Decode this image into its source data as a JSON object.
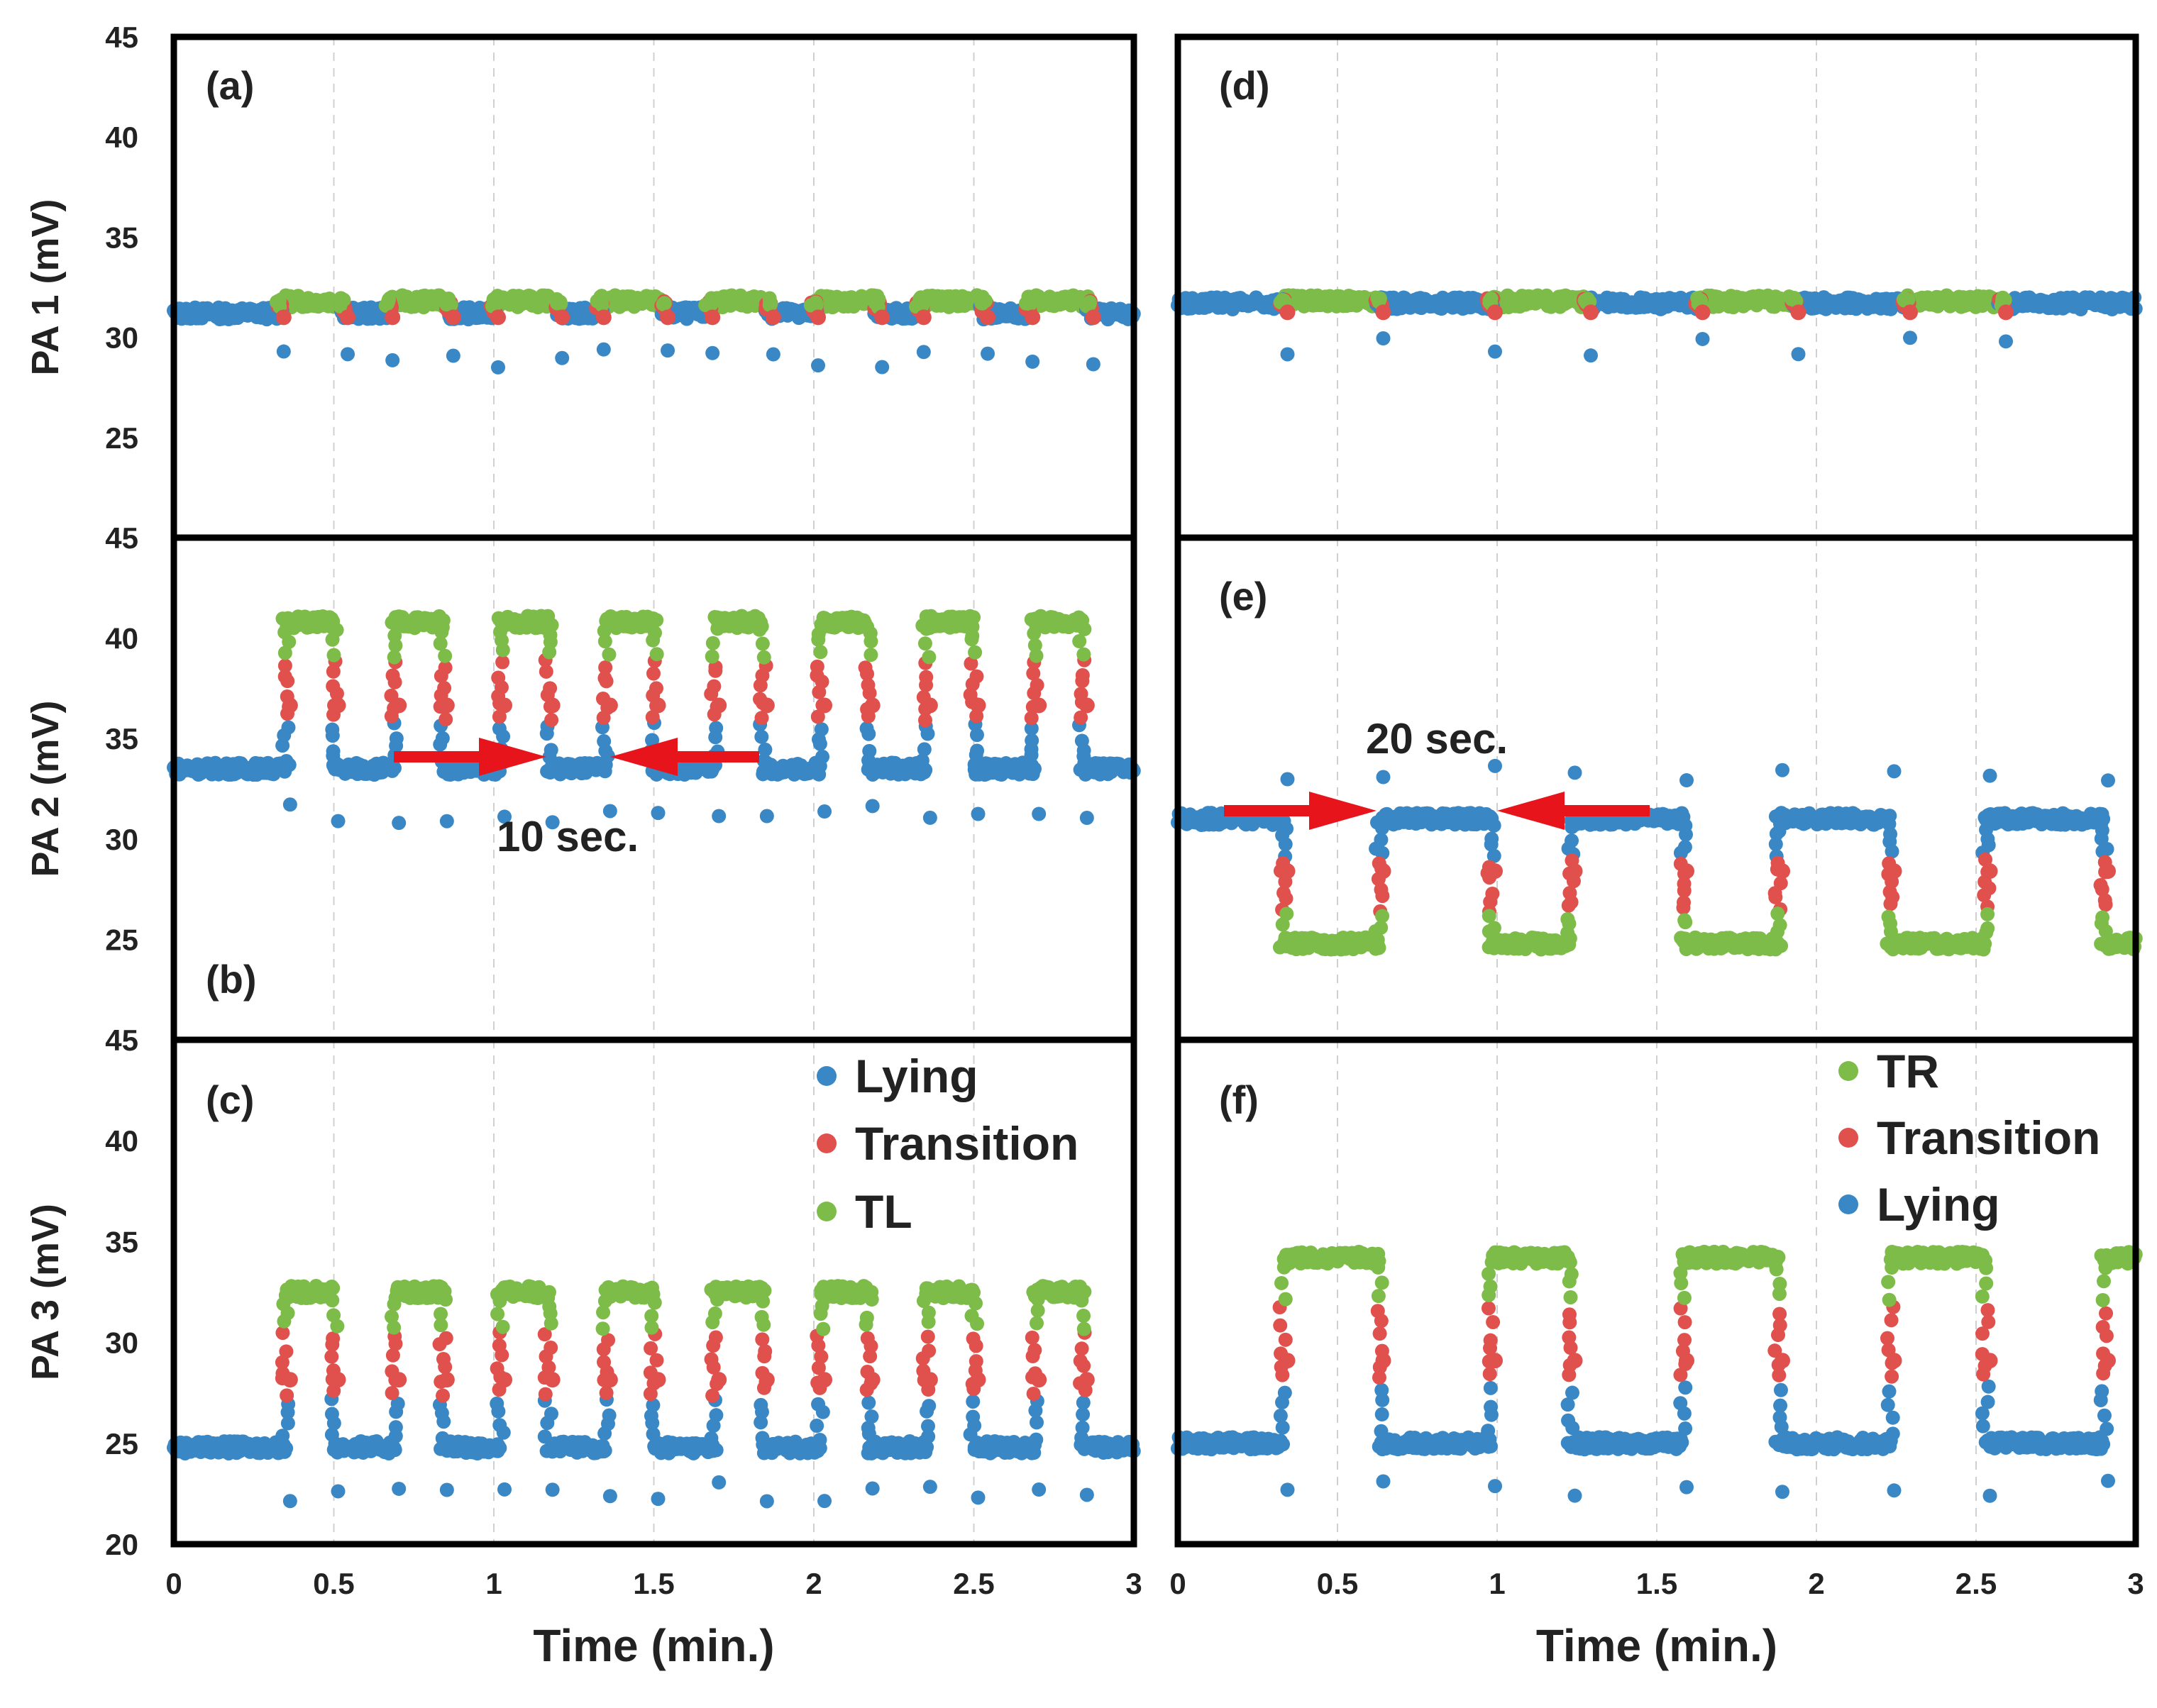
{
  "colors": {
    "lying": "#3a87c5",
    "transition": "#e0504c",
    "tilt": "#7dbc48",
    "arrow": "#e8141c"
  },
  "chart_data": [
    {
      "type": "scatter",
      "panel": "(a)",
      "ylabel": "PA 1 (mV)",
      "xlabel": "",
      "xlim": [
        0,
        3
      ],
      "ylim": [
        20,
        45
      ],
      "xticks": [],
      "yticks": [
        "25",
        "30",
        "35",
        "40",
        "45"
      ],
      "series": [
        {
          "name": "Lying",
          "description": "baseline ~31.2 mV with short spikes at transitions"
        },
        {
          "name": "Transition",
          "description": "brief points between states"
        },
        {
          "name": "TL",
          "values_mV": 31.8,
          "description": "tilt periods barely above baseline"
        }
      ],
      "lying_level": 31.2,
      "tilt_level": 31.8,
      "tilt_intervals": [
        [
          0.33,
          0.53
        ],
        [
          0.67,
          0.86
        ],
        [
          1.0,
          1.2
        ],
        [
          1.33,
          1.53
        ],
        [
          1.67,
          1.86
        ],
        [
          2.0,
          2.2
        ],
        [
          2.33,
          2.53
        ],
        [
          2.67,
          2.86
        ]
      ]
    },
    {
      "type": "scatter",
      "panel": "(b)",
      "ylabel": "PA 2 (mV)",
      "xlabel": "",
      "xlim": [
        0,
        3
      ],
      "ylim": [
        20,
        45
      ],
      "xticks": [],
      "yticks": [
        "25",
        "30",
        "35",
        "40",
        "45"
      ],
      "series": [
        {
          "name": "Lying",
          "description": "~33.5 mV baseline between tilts"
        },
        {
          "name": "Transition",
          "description": "~37 mV rising/falling edges"
        },
        {
          "name": "TL",
          "description": "~40.8 mV plateaus"
        }
      ],
      "lying_level": 33.5,
      "tilt_level": 40.8,
      "tilt_intervals": [
        [
          0.35,
          0.5
        ],
        [
          0.69,
          0.84
        ],
        [
          1.02,
          1.17
        ],
        [
          1.35,
          1.5
        ],
        [
          1.69,
          1.84
        ],
        [
          2.02,
          2.17
        ],
        [
          2.35,
          2.5
        ],
        [
          2.69,
          2.84
        ]
      ],
      "annotation": "10 sec."
    },
    {
      "type": "scatter",
      "panel": "(c)",
      "ylabel": "PA 3 (mV)",
      "xlabel": "Time (min.)",
      "xlim": [
        0,
        3
      ],
      "ylim": [
        20,
        45
      ],
      "xticks": [
        "0",
        "0.5",
        "1",
        "1.5",
        "2",
        "2.5",
        "3"
      ],
      "yticks": [
        "20",
        "25",
        "30",
        "35",
        "40",
        "45"
      ],
      "legend": [
        "Lying",
        "Transition",
        "TL"
      ],
      "series": [
        {
          "name": "Lying",
          "description": "~24.8 mV baseline"
        },
        {
          "name": "Transition",
          "description": "~27 mV edges"
        },
        {
          "name": "TL",
          "description": "~32.5 mV plateaus"
        }
      ],
      "lying_level": 24.8,
      "tilt_level": 32.5,
      "tilt_intervals": [
        [
          0.35,
          0.5
        ],
        [
          0.69,
          0.84
        ],
        [
          1.02,
          1.17
        ],
        [
          1.35,
          1.5
        ],
        [
          1.69,
          1.84
        ],
        [
          2.02,
          2.17
        ],
        [
          2.35,
          2.5
        ],
        [
          2.69,
          2.84
        ]
      ]
    },
    {
      "type": "scatter",
      "panel": "(d)",
      "ylabel": "",
      "xlabel": "",
      "xlim": [
        0,
        3
      ],
      "ylim": [
        20,
        45
      ],
      "xticks": [],
      "yticks": [],
      "series": [
        {
          "name": "Lying",
          "description": "~31.7 mV"
        },
        {
          "name": "Transition",
          "description": "brief edge points"
        },
        {
          "name": "TR",
          "description": "~31.8 mV, nearly indistinguishable"
        }
      ],
      "lying_level": 31.7,
      "tilt_level": 31.8,
      "tilt_intervals": [
        [
          0.33,
          0.63
        ],
        [
          0.98,
          1.28
        ],
        [
          1.63,
          1.93
        ],
        [
          2.28,
          2.58
        ]
      ]
    },
    {
      "type": "scatter",
      "panel": "(e)",
      "ylabel": "",
      "xlabel": "",
      "xlim": [
        0,
        3
      ],
      "ylim": [
        20,
        45
      ],
      "xticks": [],
      "yticks": [],
      "series": [
        {
          "name": "Lying",
          "description": "~31 mV plateaus"
        },
        {
          "name": "Transition",
          "description": "~27 mV edges"
        },
        {
          "name": "TR",
          "description": "~24.8 mV troughs"
        }
      ],
      "lying_level": 31.0,
      "tilt_level": 24.8,
      "tilt_intervals": [
        [
          0.33,
          0.63
        ],
        [
          0.98,
          1.23
        ],
        [
          1.58,
          1.88
        ],
        [
          2.23,
          2.53
        ],
        [
          2.9,
          3.0
        ]
      ],
      "annotation": "20 sec."
    },
    {
      "type": "scatter",
      "panel": "(f)",
      "ylabel": "",
      "xlabel": "Time (min.)",
      "xlim": [
        0,
        3
      ],
      "ylim": [
        20,
        45
      ],
      "xticks": [
        "0",
        "0.5",
        "1",
        "1.5",
        "2",
        "2.5",
        "3"
      ],
      "yticks": [],
      "legend": [
        "TR",
        "Transition",
        "Lying"
      ],
      "series": [
        {
          "name": "Lying",
          "description": "~25 mV baseline"
        },
        {
          "name": "Transition",
          "description": "~27-38 mV edges"
        },
        {
          "name": "TR",
          "description": "~34-35 mV plateaus"
        }
      ],
      "lying_level": 25.0,
      "tilt_level": 34.2,
      "tilt_intervals": [
        [
          0.33,
          0.63
        ],
        [
          0.98,
          1.23
        ],
        [
          1.58,
          1.88
        ],
        [
          2.23,
          2.53
        ],
        [
          2.9,
          3.0
        ]
      ]
    }
  ]
}
